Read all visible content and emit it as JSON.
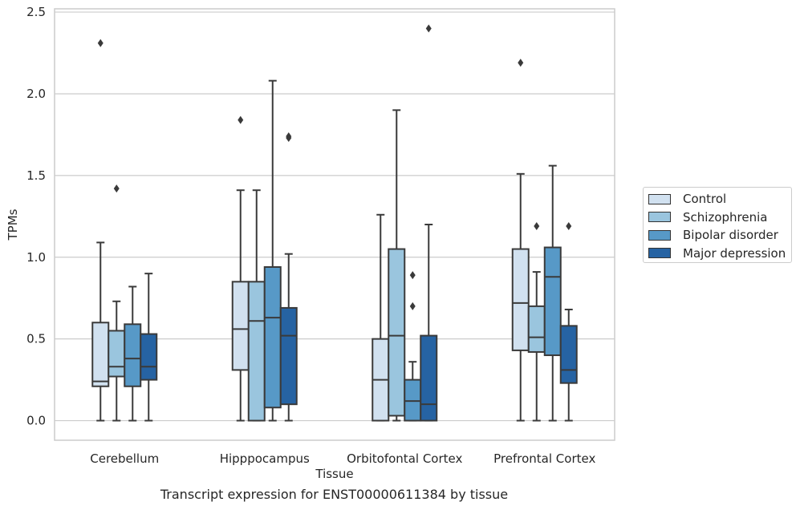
{
  "caption": "Transcript expression for ENST00000611384 by tissue",
  "colors": {
    "Control": "#d1e1f0",
    "Schizophrenia": "#9ac5de",
    "Bipolar disorder": "#5799c7",
    "Major depression": "#2663a3"
  },
  "chart_data": {
    "type": "box",
    "xlabel": "Tissue",
    "ylabel": "TPMs",
    "ylim": [
      -0.12,
      2.52
    ],
    "yticks": [
      "0.0",
      "0.5",
      "1.0",
      "1.5",
      "2.0",
      "2.5"
    ],
    "grid": true,
    "legend_position": "right",
    "categories": [
      "Cerebellum",
      "Hipppocampus",
      "Orbitofontal Cortex",
      "Prefrontal Cortex"
    ],
    "series": [
      {
        "name": "Control",
        "boxes": [
          {
            "min": 0.0,
            "q1": 0.21,
            "median": 0.24,
            "q3": 0.6,
            "max": 1.09,
            "outliers": [
              2.31
            ]
          },
          {
            "min": 0.0,
            "q1": 0.31,
            "median": 0.56,
            "q3": 0.85,
            "max": 1.41,
            "outliers": [
              1.84
            ]
          },
          {
            "min": 0.0,
            "q1": 0.0,
            "median": 0.25,
            "q3": 0.5,
            "max": 1.26,
            "outliers": []
          },
          {
            "min": 0.0,
            "q1": 0.43,
            "median": 0.72,
            "q3": 1.05,
            "max": 1.51,
            "outliers": [
              2.19
            ]
          }
        ]
      },
      {
        "name": "Schizophrenia",
        "boxes": [
          {
            "min": 0.0,
            "q1": 0.27,
            "median": 0.33,
            "q3": 0.55,
            "max": 0.73,
            "outliers": [
              1.42
            ]
          },
          {
            "min": 0.0,
            "q1": 0.0,
            "median": 0.61,
            "q3": 0.85,
            "max": 1.41,
            "outliers": []
          },
          {
            "min": 0.0,
            "q1": 0.03,
            "median": 0.52,
            "q3": 1.05,
            "max": 1.9,
            "outliers": []
          },
          {
            "min": 0.0,
            "q1": 0.42,
            "median": 0.51,
            "q3": 0.7,
            "max": 0.91,
            "outliers": [
              1.19
            ]
          }
        ]
      },
      {
        "name": "Bipolar disorder",
        "boxes": [
          {
            "min": 0.0,
            "q1": 0.21,
            "median": 0.38,
            "q3": 0.59,
            "max": 0.82,
            "outliers": []
          },
          {
            "min": 0.0,
            "q1": 0.08,
            "median": 0.63,
            "q3": 0.94,
            "max": 2.08,
            "outliers": []
          },
          {
            "min": 0.0,
            "q1": 0.0,
            "median": 0.12,
            "q3": 0.25,
            "max": 0.36,
            "outliers": [
              0.7,
              0.89
            ]
          },
          {
            "min": 0.0,
            "q1": 0.4,
            "median": 0.88,
            "q3": 1.06,
            "max": 1.56,
            "outliers": []
          }
        ]
      },
      {
        "name": "Major depression",
        "boxes": [
          {
            "min": 0.0,
            "q1": 0.25,
            "median": 0.33,
            "q3": 0.53,
            "max": 0.9,
            "outliers": []
          },
          {
            "min": 0.0,
            "q1": 0.1,
            "median": 0.52,
            "q3": 0.69,
            "max": 1.02,
            "outliers": [
              1.73,
              1.74
            ]
          },
          {
            "min": 0.0,
            "q1": 0.0,
            "median": 0.1,
            "q3": 0.52,
            "max": 1.2,
            "outliers": [
              2.4
            ]
          },
          {
            "min": 0.0,
            "q1": 0.23,
            "median": 0.31,
            "q3": 0.58,
            "max": 0.68,
            "outliers": [
              1.19
            ]
          }
        ]
      }
    ]
  }
}
